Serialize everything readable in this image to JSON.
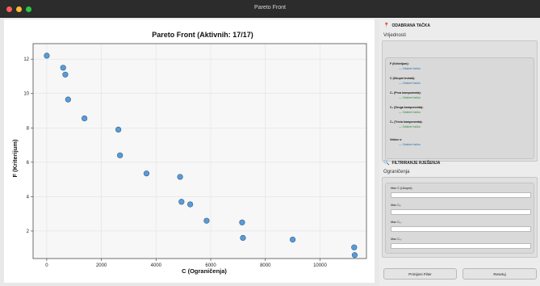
{
  "window": {
    "title": "Pareto Front"
  },
  "chart_data": {
    "type": "scatter",
    "title": "Pareto Front (Aktivnih: 17/17)",
    "xlabel": "C (Ograničenja)",
    "ylabel": "F (Kriterijum)",
    "xlim": [
      -500,
      11700
    ],
    "ylim": [
      0.4,
      12.9
    ],
    "xticks": [
      "0",
      "2000",
      "4000",
      "6000",
      "8000",
      "10000"
    ],
    "xtick_values": [
      0,
      2000,
      4000,
      6000,
      8000,
      10000
    ],
    "yticks": [
      "2",
      "4",
      "6",
      "8",
      "10",
      "12"
    ],
    "ytick_values": [
      2,
      4,
      6,
      8,
      10,
      12
    ],
    "grid": true,
    "point_color": "#5b9bd5",
    "series": [
      {
        "x": [
          0,
          600,
          680,
          780,
          1380,
          2620,
          2680,
          3650,
          4880,
          4930,
          5250,
          5850,
          7150,
          7180,
          9000,
          11250,
          11270
        ],
        "y": [
          12.2,
          11.5,
          11.1,
          9.65,
          8.55,
          7.9,
          6.4,
          5.35,
          5.15,
          3.7,
          3.55,
          2.6,
          2.5,
          1.6,
          1.5,
          1.05,
          0.6
        ]
      }
    ]
  },
  "selected": {
    "title": "ODABRANA TAČKA",
    "group_label": "Vrijednosti",
    "fields": [
      {
        "label": "F (Kriterijum):",
        "value": "— Odaberi tačku",
        "color": "blue"
      },
      {
        "label": "C (Ukupni trošak):",
        "value": "— Odaberi tačku",
        "color": "blue"
      },
      {
        "label": "C₁ (Prva komponenta):",
        "value": "— Odaberi tačku",
        "color": "green"
      },
      {
        "label": "C₂ (Druga komponenta):",
        "value": "— Odaberi tačku",
        "color": "green"
      },
      {
        "label": "C₃ (Treća komponenta):",
        "value": "— Odaberi tačku",
        "color": "green"
      },
      {
        "label": "Vektor x:",
        "value": "— Odaberi tačku",
        "color": "blue"
      }
    ]
  },
  "filter": {
    "title": "FILTRIRANJE RJEŠENJA",
    "group_label": "Ograničenja",
    "fields": [
      {
        "label": "Max C (Ukupni):",
        "value": ""
      },
      {
        "label": "Max C₁:",
        "value": ""
      },
      {
        "label": "Max C₂:",
        "value": ""
      },
      {
        "label": "Max C₃:",
        "value": ""
      }
    ],
    "apply_label": "Primijeni Filter",
    "reset_label": "Resetuj"
  }
}
